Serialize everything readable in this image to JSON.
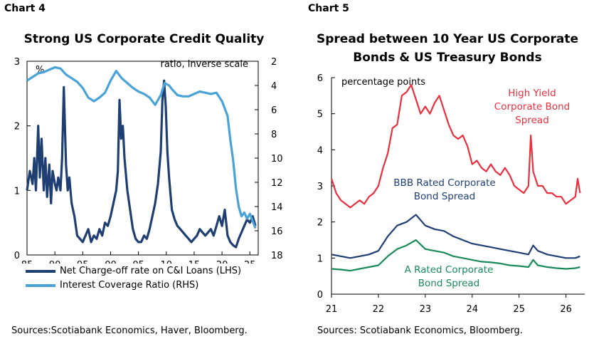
{
  "left": {
    "panel_label": "Chart 4",
    "title": "Strong US Corporate Credit Quality",
    "source": "Sources:Scotiabank Economics, Haver, Bloomberg.",
    "lhs_unit": "%",
    "rhs_unit": "ratio, inverse scale",
    "legend": [
      {
        "label": "Net Charge-off rate on C&I Loans (LHS)",
        "color": "#1f3f73"
      },
      {
        "label": "Interest Coverage Ratio (RHS)",
        "color": "#4aa3d6"
      }
    ]
  },
  "right": {
    "panel_label": "Chart 5",
    "title_lines": [
      "Spread between 10 Year US Corporate",
      "Bonds & US Treasury Bonds"
    ],
    "source": "Sources: Scotiabank Economics, Bloomberg.",
    "unit": "percentage points",
    "annotations": [
      {
        "lines": [
          "High Yield",
          "Corporate Bond",
          "Spread"
        ],
        "color": "#e8303f"
      },
      {
        "lines": [
          "BBB Rated Corporate",
          "Bond Spread"
        ],
        "color": "#1f3f73"
      },
      {
        "lines": [
          "A Rated Corporate",
          "Bond Spread"
        ],
        "color": "#1a8a5a"
      }
    ]
  },
  "chart_data": [
    {
      "type": "line",
      "title": "Strong US Corporate Credit Quality",
      "x_ticks": [
        "85",
        "90",
        "95",
        "00",
        "05",
        "10",
        "15",
        "20",
        "25"
      ],
      "xlim": [
        1985,
        2026.5
      ],
      "ylim_lhs": [
        0,
        3
      ],
      "y_ticks_lhs": [
        "0",
        "1",
        "2",
        "3"
      ],
      "ylim_rhs_inverse": [
        2,
        18
      ],
      "y_ticks_rhs": [
        "2",
        "4",
        "6",
        "8",
        "10",
        "12",
        "14",
        "16",
        "18"
      ],
      "series": [
        {
          "name": "Net Charge-off rate on C&I Loans (LHS)",
          "axis": "left",
          "color": "#1f3f73",
          "x": [
            1985,
            1985.5,
            1986,
            1986.3,
            1986.6,
            1987,
            1987.3,
            1987.6,
            1988,
            1988.3,
            1988.6,
            1989,
            1989.3,
            1989.6,
            1990,
            1990.3,
            1990.6,
            1991,
            1991.3,
            1991.6,
            1992,
            1992.3,
            1992.6,
            1993,
            1993.5,
            1994,
            1994.5,
            1995,
            1995.5,
            1996,
            1996.5,
            1997,
            1997.5,
            1998,
            1998.5,
            1999,
            1999.5,
            2000,
            2000.5,
            2001,
            2001.3,
            2001.6,
            2001.9,
            2002.2,
            2002.5,
            2002.8,
            2003,
            2003.5,
            2004,
            2004.5,
            2005,
            2005.5,
            2006,
            2006.5,
            2007,
            2007.5,
            2008,
            2008.5,
            2009,
            2009.3,
            2009.6,
            2009.9,
            2010.2,
            2010.5,
            2010.8,
            2011,
            2011.5,
            2012,
            2012.5,
            2013,
            2013.5,
            2014,
            2014.5,
            2015,
            2015.5,
            2016,
            2016.5,
            2017,
            2017.5,
            2018,
            2018.5,
            2019,
            2019.5,
            2020,
            2020.5,
            2021,
            2021.5,
            2022,
            2022.5,
            2023,
            2023.5,
            2024,
            2024.5,
            2025,
            2025.5,
            2026
          ],
          "values": [
            1.0,
            1.3,
            1.1,
            1.5,
            1.0,
            2.0,
            1.2,
            1.8,
            1.0,
            1.5,
            0.9,
            1.4,
            0.8,
            1.3,
            1.1,
            1.0,
            1.2,
            1.0,
            1.5,
            2.6,
            1.4,
            1.0,
            1.2,
            0.8,
            0.6,
            0.3,
            0.25,
            0.2,
            0.3,
            0.4,
            0.2,
            0.3,
            0.25,
            0.4,
            0.3,
            0.5,
            0.45,
            0.6,
            0.8,
            1.0,
            1.3,
            2.4,
            1.8,
            2.0,
            1.5,
            1.2,
            1.0,
            0.7,
            0.4,
            0.25,
            0.2,
            0.2,
            0.3,
            0.25,
            0.4,
            0.6,
            0.8,
            1.1,
            1.6,
            2.4,
            2.7,
            2.3,
            1.6,
            1.2,
            0.9,
            0.7,
            0.55,
            0.45,
            0.4,
            0.35,
            0.3,
            0.25,
            0.2,
            0.25,
            0.3,
            0.4,
            0.35,
            0.3,
            0.35,
            0.4,
            0.3,
            0.45,
            0.6,
            0.45,
            0.7,
            0.3,
            0.2,
            0.15,
            0.12,
            0.25,
            0.35,
            0.45,
            0.55,
            0.5,
            0.6,
            0.45
          ]
        },
        {
          "name": "Interest Coverage Ratio (RHS)",
          "axis": "right",
          "color": "#4aa3d6",
          "x": [
            1985,
            1986,
            1987,
            1988,
            1989,
            1990,
            1991,
            1992,
            1993,
            1994,
            1995,
            1996,
            1997,
            1998,
            1999,
            2000,
            2001,
            2002,
            2003,
            2004,
            2005,
            2006,
            2007,
            2008,
            2009,
            2009.7,
            2010.5,
            2011,
            2012,
            2013,
            2014,
            2015,
            2016,
            2017,
            2018,
            2019,
            2020,
            2021,
            2021.5,
            2022,
            2022.5,
            2023,
            2023.5,
            2024,
            2024.5,
            2025,
            2025.5,
            2026
          ],
          "values": [
            3.6,
            3.3,
            3.0,
            2.9,
            2.7,
            2.5,
            2.6,
            3.1,
            3.4,
            3.7,
            4.2,
            5.0,
            5.3,
            5.0,
            4.6,
            3.6,
            2.8,
            3.4,
            3.8,
            4.2,
            4.5,
            4.7,
            5.0,
            5.6,
            4.8,
            3.8,
            4.0,
            4.3,
            4.8,
            4.9,
            4.9,
            4.7,
            4.5,
            4.6,
            4.7,
            4.6,
            5.3,
            6.5,
            8.5,
            10.2,
            12.5,
            14.0,
            14.8,
            14.5,
            15.0,
            14.6,
            15.2,
            15.8
          ]
        }
      ]
    },
    {
      "type": "line",
      "title": "Spread between 10 Year US Corporate Bonds & US Treasury Bonds",
      "x_ticks": [
        "21",
        "22",
        "23",
        "24",
        "25",
        "26"
      ],
      "xlim": [
        2021,
        2026.4
      ],
      "ylim": [
        0,
        6
      ],
      "y_ticks": [
        "0",
        "1",
        "2",
        "3",
        "4",
        "5",
        "6"
      ],
      "ylabel": "percentage points",
      "series": [
        {
          "name": "High Yield Corporate Bond Spread",
          "color": "#e8303f",
          "x": [
            2021.0,
            2021.1,
            2021.2,
            2021.3,
            2021.4,
            2021.5,
            2021.6,
            2021.7,
            2021.8,
            2021.9,
            2022.0,
            2022.1,
            2022.2,
            2022.3,
            2022.4,
            2022.5,
            2022.6,
            2022.7,
            2022.8,
            2022.9,
            2023.0,
            2023.1,
            2023.2,
            2023.3,
            2023.4,
            2023.5,
            2023.6,
            2023.7,
            2023.8,
            2023.9,
            2024.0,
            2024.1,
            2024.2,
            2024.3,
            2024.4,
            2024.5,
            2024.6,
            2024.7,
            2024.8,
            2024.9,
            2025.0,
            2025.1,
            2025.2,
            2025.25,
            2025.3,
            2025.4,
            2025.5,
            2025.6,
            2025.7,
            2025.8,
            2025.9,
            2026.0,
            2026.1,
            2026.2,
            2026.25,
            2026.3
          ],
          "values": [
            3.2,
            2.8,
            2.6,
            2.5,
            2.4,
            2.5,
            2.6,
            2.5,
            2.7,
            2.8,
            3.0,
            3.5,
            3.9,
            4.6,
            4.7,
            5.5,
            5.6,
            5.8,
            5.4,
            5.0,
            5.2,
            5.0,
            5.3,
            5.5,
            5.1,
            4.7,
            4.4,
            4.3,
            4.4,
            4.1,
            3.6,
            3.7,
            3.5,
            3.4,
            3.6,
            3.4,
            3.3,
            3.5,
            3.3,
            3.0,
            2.9,
            2.8,
            3.0,
            4.4,
            3.4,
            3.0,
            3.0,
            2.8,
            2.8,
            2.7,
            2.7,
            2.5,
            2.6,
            2.7,
            3.2,
            2.8
          ]
        },
        {
          "name": "BBB Rated Corporate Bond Spread",
          "color": "#1f3f73",
          "x": [
            2021.0,
            2021.2,
            2021.4,
            2021.6,
            2021.8,
            2022.0,
            2022.2,
            2022.4,
            2022.6,
            2022.8,
            2023.0,
            2023.2,
            2023.4,
            2023.6,
            2023.8,
            2024.0,
            2024.2,
            2024.4,
            2024.6,
            2024.8,
            2025.0,
            2025.2,
            2025.3,
            2025.4,
            2025.6,
            2025.8,
            2026.0,
            2026.2,
            2026.3
          ],
          "values": [
            1.1,
            1.05,
            1.0,
            1.05,
            1.1,
            1.2,
            1.6,
            1.9,
            2.0,
            2.2,
            1.9,
            1.8,
            1.75,
            1.6,
            1.5,
            1.4,
            1.35,
            1.3,
            1.25,
            1.2,
            1.15,
            1.1,
            1.35,
            1.2,
            1.1,
            1.05,
            1.0,
            1.0,
            1.05
          ]
        },
        {
          "name": "A Rated Corporate Bond Spread",
          "color": "#1a8a5a",
          "x": [
            2021.0,
            2021.2,
            2021.4,
            2021.6,
            2021.8,
            2022.0,
            2022.2,
            2022.4,
            2022.6,
            2022.8,
            2023.0,
            2023.2,
            2023.4,
            2023.6,
            2023.8,
            2024.0,
            2024.2,
            2024.4,
            2024.6,
            2024.8,
            2025.0,
            2025.2,
            2025.3,
            2025.4,
            2025.6,
            2025.8,
            2026.0,
            2026.2,
            2026.3
          ],
          "values": [
            0.7,
            0.68,
            0.65,
            0.7,
            0.75,
            0.8,
            1.05,
            1.25,
            1.35,
            1.5,
            1.25,
            1.2,
            1.15,
            1.05,
            1.0,
            0.95,
            0.9,
            0.88,
            0.85,
            0.8,
            0.78,
            0.75,
            0.95,
            0.8,
            0.75,
            0.72,
            0.7,
            0.72,
            0.75
          ]
        }
      ]
    }
  ]
}
